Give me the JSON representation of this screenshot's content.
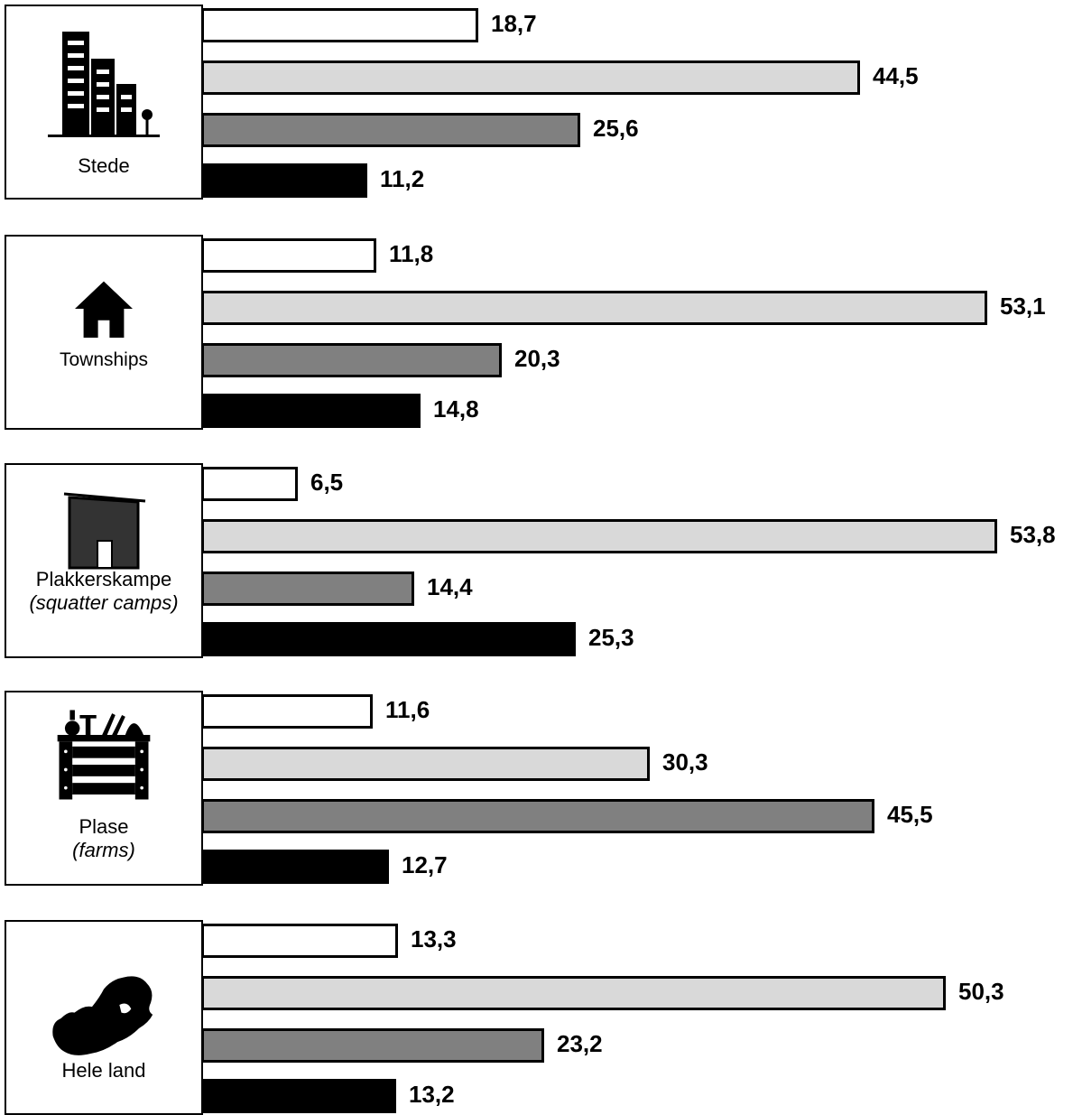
{
  "chart_data": {
    "type": "bar",
    "orientation": "horizontal",
    "decimal_separator": ",",
    "categories": [
      {
        "label": "Stede",
        "sublabel": "",
        "icon": "city-buildings-icon",
        "values": [
          18.7,
          44.5,
          25.6,
          11.2
        ]
      },
      {
        "label": "Townships",
        "sublabel": "",
        "icon": "house-icon",
        "values": [
          11.8,
          53.1,
          20.3,
          14.8
        ]
      },
      {
        "label": "Plakkerskampe",
        "sublabel": "(squatter camps)",
        "icon": "shack-icon",
        "values": [
          6.5,
          53.8,
          14.4,
          25.3
        ]
      },
      {
        "label": "Plase",
        "sublabel": "(farms)",
        "icon": "vegetable-crate-icon",
        "values": [
          11.6,
          30.3,
          45.5,
          12.7
        ]
      },
      {
        "label": "Hele land",
        "sublabel": "",
        "icon": "south-africa-map-icon",
        "values": [
          13.3,
          50.3,
          23.2,
          13.2
        ]
      }
    ],
    "series_colors": [
      "#ffffff",
      "#d9d9d9",
      "#808080",
      "#000000"
    ],
    "xlim": [
      0,
      57.3
    ],
    "grid": false,
    "legend": "none"
  }
}
